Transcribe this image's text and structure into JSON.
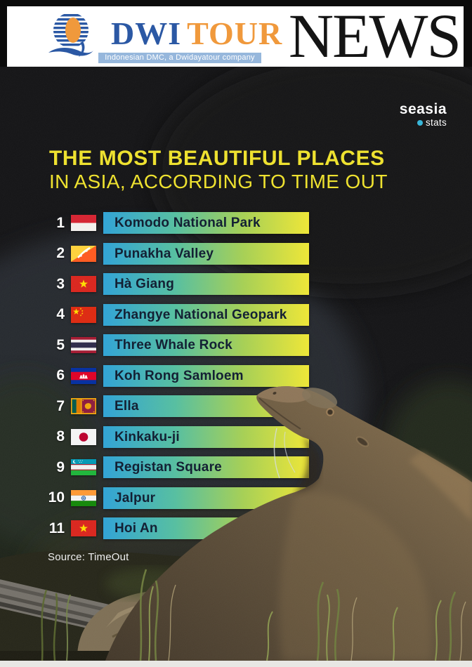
{
  "header": {
    "brand": {
      "logo_icon": "dwi-tour-globe-swoosh-logo",
      "name_blue": "DWI",
      "name_orange": "TOUR",
      "tagline": "Indonesian DMC, a Dwidayatour company"
    },
    "masthead": "NEWS"
  },
  "photo": {
    "badge": {
      "brand": "seasia",
      "dot_icon": "cyan-dot-icon",
      "sub": "stats"
    },
    "title_line1": "THE MOST BEAUTIFUL PLACES",
    "title_line2": "IN ASIA, ACCORDING TO TIME OUT",
    "source": "Source: TimeOut",
    "rows": [
      {
        "rank": "1",
        "place": "Komodo National Park",
        "flag": "indonesia-flag-icon"
      },
      {
        "rank": "2",
        "place": "Punakha Valley",
        "flag": "bhutan-flag-icon"
      },
      {
        "rank": "3",
        "place": "Hà Giang",
        "flag": "vietnam-flag-icon"
      },
      {
        "rank": "4",
        "place": "Zhangye National Geopark",
        "flag": "china-flag-icon"
      },
      {
        "rank": "5",
        "place": "Three Whale Rock",
        "flag": "thailand-flag-icon"
      },
      {
        "rank": "6",
        "place": "Koh Rong Samloem",
        "flag": "cambodia-flag-icon"
      },
      {
        "rank": "7",
        "place": "Ella",
        "flag": "sri-lanka-flag-icon"
      },
      {
        "rank": "8",
        "place": "Kinkaku-ji",
        "flag": "japan-flag-icon"
      },
      {
        "rank": "9",
        "place": "Registan Square",
        "flag": "uzbekistan-flag-icon"
      },
      {
        "rank": "10",
        "place": "Jalpur",
        "flag": "india-flag-icon"
      },
      {
        "rank": "11",
        "place": "Hoi An",
        "flag": "vietnam-flag-icon"
      }
    ]
  },
  "colors": {
    "accent_yellow": "#efe22c",
    "bar_gradient": [
      "#2fa3d6",
      "#55bfa0",
      "#a6d054",
      "#efe735"
    ],
    "badge_dot": "#35b6d9",
    "brand_blue": "#2b58a4",
    "brand_orange": "#f0993c",
    "tagline_bar": "#96b7dc"
  }
}
